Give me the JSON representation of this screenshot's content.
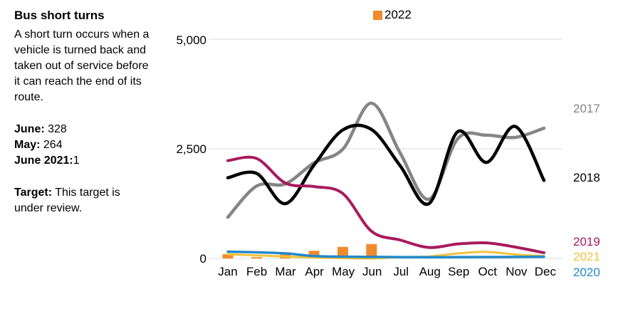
{
  "panel": {
    "title": "Bus short turns",
    "description": "A short turn occurs when a vehicle is turned back and taken out of service before it can reach the end of its route.",
    "stats": [
      {
        "label": "June:",
        "value": " 328"
      },
      {
        "label": "May:",
        "value": " 264"
      },
      {
        "label": "June 2021:",
        "value": "1"
      }
    ],
    "target_label": "Target:",
    "target_text": " This target is under review."
  },
  "chart_data": {
    "type": "combo",
    "categories": [
      "Jan",
      "Feb",
      "Mar",
      "Apr",
      "May",
      "Jun",
      "Jul",
      "Aug",
      "Sep",
      "Oct",
      "Nov",
      "Dec"
    ],
    "y_axis": {
      "ticks": [
        "5,000",
        "2,500",
        "0"
      ],
      "values": [
        5000,
        2500,
        0
      ],
      "min": 0,
      "max": 5000,
      "grid": true
    },
    "bar_series": {
      "name": "2022",
      "color": "#F18A2D",
      "values": [
        95,
        30,
        140,
        175,
        264,
        328,
        null,
        null,
        null,
        null,
        null,
        null
      ]
    },
    "line_series": [
      {
        "name": "2017",
        "color": "#858585",
        "width": 4.5,
        "values": [
          940,
          1650,
          1700,
          2180,
          2490,
          3540,
          2400,
          1350,
          2730,
          2810,
          2760,
          2970
        ]
      },
      {
        "name": "2018",
        "color": "#000000",
        "width": 4.5,
        "values": [
          1840,
          1940,
          1250,
          2130,
          2930,
          2940,
          2110,
          1250,
          2890,
          2190,
          3010,
          1780
        ]
      },
      {
        "name": "2019",
        "color": "#A81A5E",
        "width": 4,
        "values": [
          2230,
          2280,
          1720,
          1640,
          1480,
          620,
          420,
          250,
          330,
          355,
          260,
          130
        ]
      },
      {
        "name": "2021",
        "color": "#F0C33C",
        "width": 3,
        "values": [
          95,
          70,
          45,
          20,
          8,
          1,
          30,
          45,
          115,
          150,
          90,
          55
        ]
      },
      {
        "name": "2020",
        "color": "#2289CB",
        "width": 3.5,
        "values": [
          155,
          140,
          115,
          55,
          40,
          35,
          30,
          28,
          30,
          32,
          35,
          38
        ]
      }
    ],
    "grid_color": "#DBDBDB"
  }
}
